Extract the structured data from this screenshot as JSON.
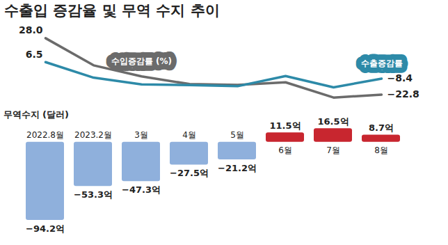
{
  "chart_data": [
    {
      "type": "line",
      "title": "수출입 증감율 및 무역 수지 추이",
      "categories": [
        "2022.8월",
        "2023.2월",
        "3월",
        "4월",
        "5월",
        "6월",
        "7월",
        "8월"
      ],
      "ylim": [
        -30,
        32
      ],
      "tick_labels": false,
      "data_labels": true,
      "series": [
        {
          "name": "수입증감률 (%)",
          "color": "#6b6b6b",
          "values": [
            28.0,
            3.6,
            -6.4,
            -13.3,
            -14.0,
            -11.7,
            -25.4,
            -22.8
          ],
          "value_labels": [
            "28.0",
            null,
            null,
            null,
            null,
            null,
            null,
            "−22.8"
          ]
        },
        {
          "name": "수출증감률",
          "color": "#2d8aa8",
          "values": [
            6.5,
            -7.5,
            -13.6,
            -14.2,
            -15.2,
            -6.0,
            -16.2,
            -8.4
          ],
          "value_labels": [
            "6.5",
            null,
            null,
            null,
            null,
            null,
            null,
            "−8.4"
          ]
        }
      ]
    },
    {
      "type": "bar",
      "title": "무역수지 (달러)",
      "categories": [
        "2022.8월",
        "2023.2월",
        "3월",
        "4월",
        "5월",
        "6월",
        "7월",
        "8월"
      ],
      "values": [
        -94.2,
        -53.3,
        -47.3,
        -27.5,
        -21.2,
        11.5,
        16.5,
        8.7
      ],
      "value_labels": [
        "−94.2억",
        "−53.3억",
        "−47.3억",
        "−27.5억",
        "−21.2억",
        "11.5억",
        "16.5억",
        "8.7억"
      ],
      "colors": [
        "#8fb0dc",
        "#8fb0dc",
        "#8fb0dc",
        "#8fb0dc",
        "#8fb0dc",
        "#c8262f",
        "#c8262f",
        "#c8262f"
      ],
      "ylim": [
        -100,
        20
      ],
      "tick_labels": "x",
      "data_labels": true
    }
  ]
}
